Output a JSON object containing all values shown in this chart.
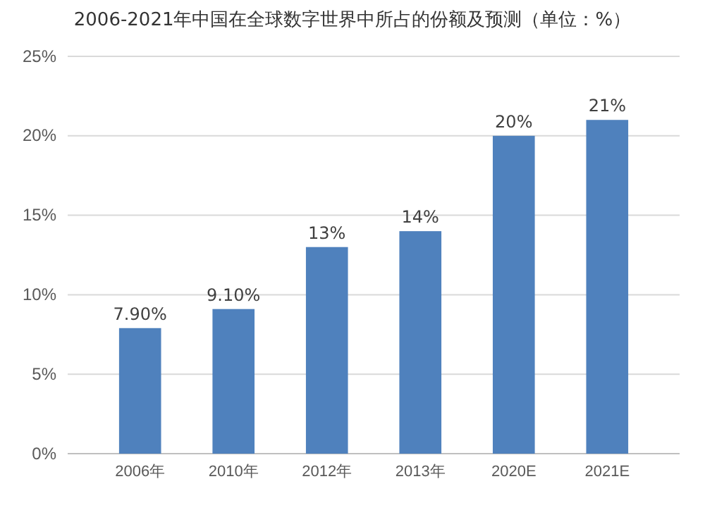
{
  "chart_data": {
    "type": "bar",
    "title": "2006-2021年中国在全球数字世界中所占的份额及预测（单位：%）",
    "categories": [
      "2006年",
      "2010年",
      "2012年",
      "2013年",
      "2020E",
      "2021E"
    ],
    "values": [
      7.9,
      9.1,
      13,
      14,
      20,
      21
    ],
    "value_labels": [
      "7.90%",
      "9.10%",
      "13%",
      "14%",
      "20%",
      "21%"
    ],
    "color": "#4f81bd",
    "ylim": [
      0,
      25
    ],
    "yticks": [
      {
        "value": 0,
        "label": "0%"
      },
      {
        "value": 5,
        "label": "5%"
      },
      {
        "value": 10,
        "label": "10%"
      },
      {
        "value": 15,
        "label": "15%"
      },
      {
        "value": 20,
        "label": "20%"
      },
      {
        "value": 25,
        "label": "25%"
      }
    ],
    "grid": "y"
  }
}
